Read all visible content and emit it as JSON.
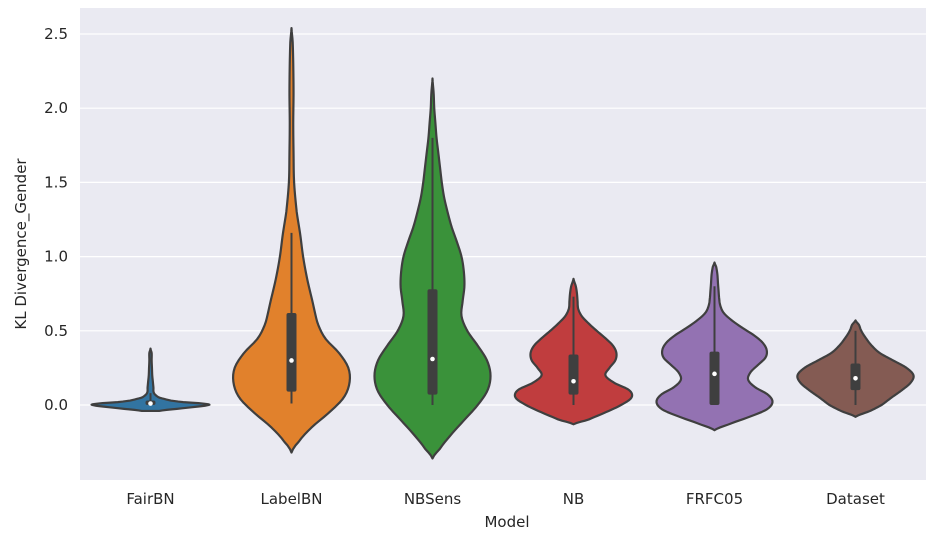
{
  "chart_data": {
    "type": "violin",
    "title": "",
    "xlabel": "Model",
    "ylabel": "KL Divergence_Gender",
    "ylim": [
      -0.5,
      2.6
    ],
    "yticks": [
      0.0,
      0.5,
      1.0,
      1.5,
      2.0,
      2.5
    ],
    "ytick_labels": [
      "0.0",
      "0.5",
      "1.0",
      "1.5",
      "2.0",
      "2.5"
    ],
    "grid": true,
    "background": "#eaeaf2",
    "categories": [
      "FairBN",
      "LabelBN",
      "NBSens",
      "NB",
      "FRFC05",
      "Dataset"
    ],
    "series": [
      {
        "category": "FairBN",
        "color": "#3274a1",
        "min": 0.0,
        "q1": 0.0,
        "median": 0.01,
        "q3": 0.03,
        "max": 0.08,
        "kde_min": -0.04,
        "kde_max": 0.38,
        "density": [
          [
            -0.04,
            0.15
          ],
          [
            -0.02,
            0.6
          ],
          [
            0.0,
            1.0
          ],
          [
            0.01,
            0.9
          ],
          [
            0.02,
            0.55
          ],
          [
            0.03,
            0.35
          ],
          [
            0.05,
            0.15
          ],
          [
            0.08,
            0.06
          ],
          [
            0.12,
            0.05
          ],
          [
            0.16,
            0.04
          ],
          [
            0.2,
            0.03
          ],
          [
            0.25,
            0.025
          ],
          [
            0.3,
            0.02
          ],
          [
            0.35,
            0.02
          ],
          [
            0.38,
            0.0
          ]
        ]
      },
      {
        "category": "LabelBN",
        "color": "#e1812c",
        "min": 0.01,
        "q1": 0.09,
        "median": 0.3,
        "q3": 0.62,
        "max": 1.16,
        "kde_min": -0.32,
        "kde_max": 2.54,
        "density": [
          [
            -0.32,
            0.0
          ],
          [
            -0.25,
            0.12
          ],
          [
            -0.15,
            0.35
          ],
          [
            -0.05,
            0.65
          ],
          [
            0.05,
            0.9
          ],
          [
            0.15,
            1.0
          ],
          [
            0.25,
            0.98
          ],
          [
            0.35,
            0.82
          ],
          [
            0.45,
            0.58
          ],
          [
            0.55,
            0.45
          ],
          [
            0.7,
            0.36
          ],
          [
            0.85,
            0.27
          ],
          [
            1.0,
            0.2
          ],
          [
            1.15,
            0.15
          ],
          [
            1.3,
            0.09
          ],
          [
            1.5,
            0.045
          ],
          [
            1.7,
            0.035
          ],
          [
            1.9,
            0.03
          ],
          [
            2.1,
            0.035
          ],
          [
            2.3,
            0.03
          ],
          [
            2.45,
            0.02
          ],
          [
            2.54,
            0.0
          ]
        ]
      },
      {
        "category": "NBSens",
        "color": "#3a923a",
        "min": 0.0,
        "q1": 0.07,
        "median": 0.31,
        "q3": 0.78,
        "max": 1.8,
        "kde_min": -0.36,
        "kde_max": 2.2,
        "density": [
          [
            -0.36,
            0.0
          ],
          [
            -0.3,
            0.12
          ],
          [
            -0.2,
            0.32
          ],
          [
            -0.1,
            0.55
          ],
          [
            0.0,
            0.78
          ],
          [
            0.1,
            0.95
          ],
          [
            0.2,
            1.0
          ],
          [
            0.3,
            0.94
          ],
          [
            0.4,
            0.78
          ],
          [
            0.5,
            0.6
          ],
          [
            0.6,
            0.5
          ],
          [
            0.7,
            0.52
          ],
          [
            0.8,
            0.55
          ],
          [
            0.9,
            0.54
          ],
          [
            1.0,
            0.5
          ],
          [
            1.1,
            0.42
          ],
          [
            1.2,
            0.33
          ],
          [
            1.3,
            0.26
          ],
          [
            1.4,
            0.2
          ],
          [
            1.5,
            0.16
          ],
          [
            1.6,
            0.13
          ],
          [
            1.7,
            0.1
          ],
          [
            1.8,
            0.07
          ],
          [
            1.9,
            0.05
          ],
          [
            2.0,
            0.03
          ],
          [
            2.1,
            0.02
          ],
          [
            2.2,
            0.0
          ]
        ]
      },
      {
        "category": "NB",
        "color": "#c03d3e",
        "min": 0.0,
        "q1": 0.07,
        "median": 0.16,
        "q3": 0.34,
        "max": 0.73,
        "kde_min": -0.13,
        "kde_max": 0.85,
        "density": [
          [
            -0.13,
            0.0
          ],
          [
            -0.1,
            0.25
          ],
          [
            -0.05,
            0.55
          ],
          [
            0.0,
            0.82
          ],
          [
            0.05,
            1.0
          ],
          [
            0.1,
            0.96
          ],
          [
            0.15,
            0.7
          ],
          [
            0.2,
            0.55
          ],
          [
            0.25,
            0.62
          ],
          [
            0.3,
            0.72
          ],
          [
            0.35,
            0.74
          ],
          [
            0.4,
            0.68
          ],
          [
            0.45,
            0.55
          ],
          [
            0.5,
            0.4
          ],
          [
            0.55,
            0.26
          ],
          [
            0.6,
            0.14
          ],
          [
            0.65,
            0.08
          ],
          [
            0.7,
            0.07
          ],
          [
            0.75,
            0.06
          ],
          [
            0.8,
            0.04
          ],
          [
            0.85,
            0.0
          ]
        ]
      },
      {
        "category": "FRFC05",
        "color": "#9372b2",
        "min": 0.0,
        "q1": 0.0,
        "median": 0.21,
        "q3": 0.36,
        "max": 0.8,
        "kde_min": -0.17,
        "kde_max": 0.96,
        "density": [
          [
            -0.17,
            0.0
          ],
          [
            -0.13,
            0.25
          ],
          [
            -0.08,
            0.6
          ],
          [
            -0.03,
            0.9
          ],
          [
            0.02,
            1.0
          ],
          [
            0.07,
            0.92
          ],
          [
            0.12,
            0.7
          ],
          [
            0.17,
            0.58
          ],
          [
            0.22,
            0.62
          ],
          [
            0.27,
            0.75
          ],
          [
            0.32,
            0.88
          ],
          [
            0.37,
            0.9
          ],
          [
            0.42,
            0.83
          ],
          [
            0.47,
            0.68
          ],
          [
            0.52,
            0.48
          ],
          [
            0.57,
            0.3
          ],
          [
            0.62,
            0.16
          ],
          [
            0.67,
            0.1
          ],
          [
            0.72,
            0.08
          ],
          [
            0.77,
            0.07
          ],
          [
            0.82,
            0.06
          ],
          [
            0.88,
            0.05
          ],
          [
            0.93,
            0.03
          ],
          [
            0.96,
            0.0
          ]
        ]
      },
      {
        "category": "Dataset",
        "color": "#845b53",
        "min": 0.0,
        "q1": 0.1,
        "median": 0.18,
        "q3": 0.28,
        "max": 0.5,
        "kde_min": -0.08,
        "kde_max": 0.57,
        "density": [
          [
            -0.08,
            0.0
          ],
          [
            -0.04,
            0.25
          ],
          [
            0.0,
            0.45
          ],
          [
            0.05,
            0.62
          ],
          [
            0.1,
            0.8
          ],
          [
            0.15,
            0.95
          ],
          [
            0.2,
            1.0
          ],
          [
            0.25,
            0.88
          ],
          [
            0.3,
            0.65
          ],
          [
            0.35,
            0.42
          ],
          [
            0.4,
            0.28
          ],
          [
            0.45,
            0.18
          ],
          [
            0.5,
            0.1
          ],
          [
            0.54,
            0.06
          ],
          [
            0.57,
            0.0
          ]
        ]
      }
    ]
  }
}
